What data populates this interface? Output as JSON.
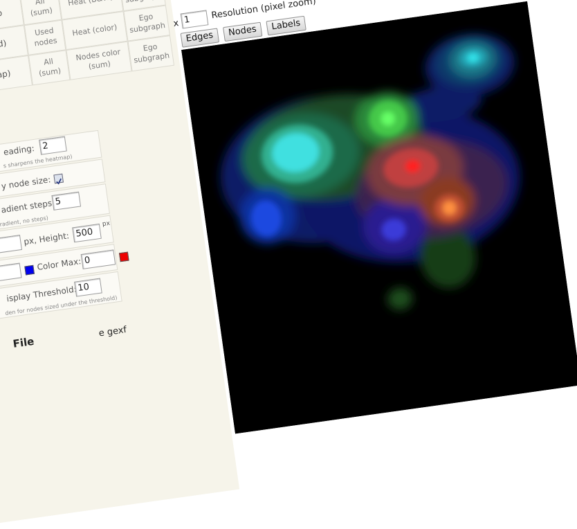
{
  "settings_table": {
    "rows": [
      {
        "source": "Used nodes"
      },
      {
        "label": "ap",
        "source": "All (sum)",
        "mode": "Heat (B&W)",
        "graph": "Ego subgraph"
      },
      {
        "label": "olorized)",
        "source": "Used nodes",
        "mode": "Heat (color)",
        "graph": "Ego subgraph"
      },
      {
        "label": "ud (Color atmap)",
        "source": "All (sum)",
        "mode": "Nodes color (sum)",
        "graph": "Ego subgraph"
      }
    ]
  },
  "form": {
    "spreading": {
      "label": "eading:",
      "value": 2,
      "note": "s sharpens the heatmap)"
    },
    "node_size": {
      "label": "y node size:",
      "checked": true
    },
    "steps": {
      "label": "adient steps:",
      "value": 5,
      "note": "gradient, no steps)"
    },
    "size": {
      "width_unit": "px, Height:",
      "height": 500,
      "height_unit": "px"
    },
    "colors": {
      "max_label": "Color Max:",
      "max_value": 0
    },
    "threshold": {
      "label": "isplay Threshold:",
      "value": 10,
      "note": "den for nodes sized under the threshold)"
    },
    "file": {
      "title": "File",
      "link": "e gexf"
    }
  },
  "viewer": {
    "zoom_prefix": "x",
    "zoom": 1,
    "zoom_label": "Resolution (pixel zoom)",
    "buttons": [
      "Edges",
      "Nodes",
      "Labels"
    ]
  }
}
